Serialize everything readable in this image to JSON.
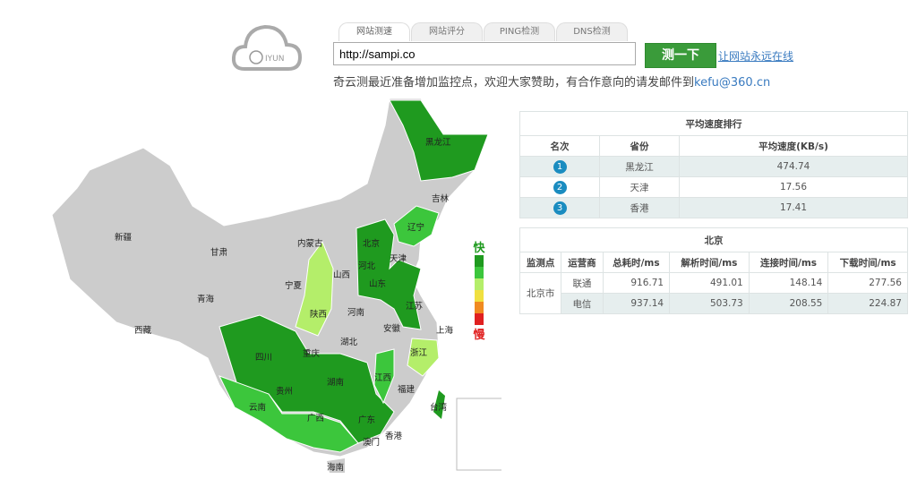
{
  "logo": {
    "text": "IYUN"
  },
  "tabs": [
    {
      "label": "网站测速"
    },
    {
      "label": "网站评分"
    },
    {
      "label": "PING检测"
    },
    {
      "label": "DNS检测"
    }
  ],
  "search": {
    "value": "http://sampi.co",
    "button": "测一下",
    "link": "让网站永远在线"
  },
  "notice": {
    "text": "奇云测最近准备增加监控点，欢迎大家赞助，有合作意向的请发邮件到",
    "email": "kefu@360.cn"
  },
  "ranking": {
    "title": "平均速度排行",
    "headers": [
      "名次",
      "省份",
      "平均速度(KB/s)"
    ],
    "rows": [
      {
        "rank": "1",
        "province": "黑龙江",
        "speed": "474.74"
      },
      {
        "rank": "2",
        "province": "天津",
        "speed": "17.56"
      },
      {
        "rank": "3",
        "province": "香港",
        "speed": "17.41"
      }
    ]
  },
  "detail": {
    "title": "北京",
    "headers": [
      "监测点",
      "运营商",
      "总耗时/ms",
      "解析时间/ms",
      "连接时间/ms",
      "下载时间/ms"
    ],
    "location": "北京市",
    "rows": [
      {
        "isp": "联通",
        "total": "916.71",
        "dns": "491.01",
        "connect": "148.14",
        "download": "277.56"
      },
      {
        "isp": "电信",
        "total": "937.14",
        "dns": "503.73",
        "connect": "208.55",
        "download": "224.87"
      }
    ]
  },
  "legend": {
    "fast": "快",
    "slow": "慢",
    "colors": [
      "#1f9a1f",
      "#3cc63c",
      "#b4ee6a",
      "#f0e040",
      "#f08a20",
      "#e02020"
    ]
  },
  "map": {
    "provinces": [
      "黑龙江",
      "吉林",
      "辽宁",
      "新疆",
      "内蒙古",
      "甘肃",
      "北京",
      "天津",
      "河北",
      "宁夏",
      "山西",
      "山东",
      "青海",
      "陕西",
      "河南",
      "江苏",
      "西藏",
      "安徽",
      "上海",
      "湖北",
      "四川",
      "重庆",
      "浙江",
      "江西",
      "湖南",
      "贵州",
      "福建",
      "台湾",
      "云南",
      "广西",
      "广东",
      "香港",
      "澳门",
      "海南"
    ],
    "colors": {
      "land": "#cccccc",
      "dark": "#1f9a1f",
      "mid": "#3cc63c",
      "light": "#b4ee6a"
    }
  }
}
